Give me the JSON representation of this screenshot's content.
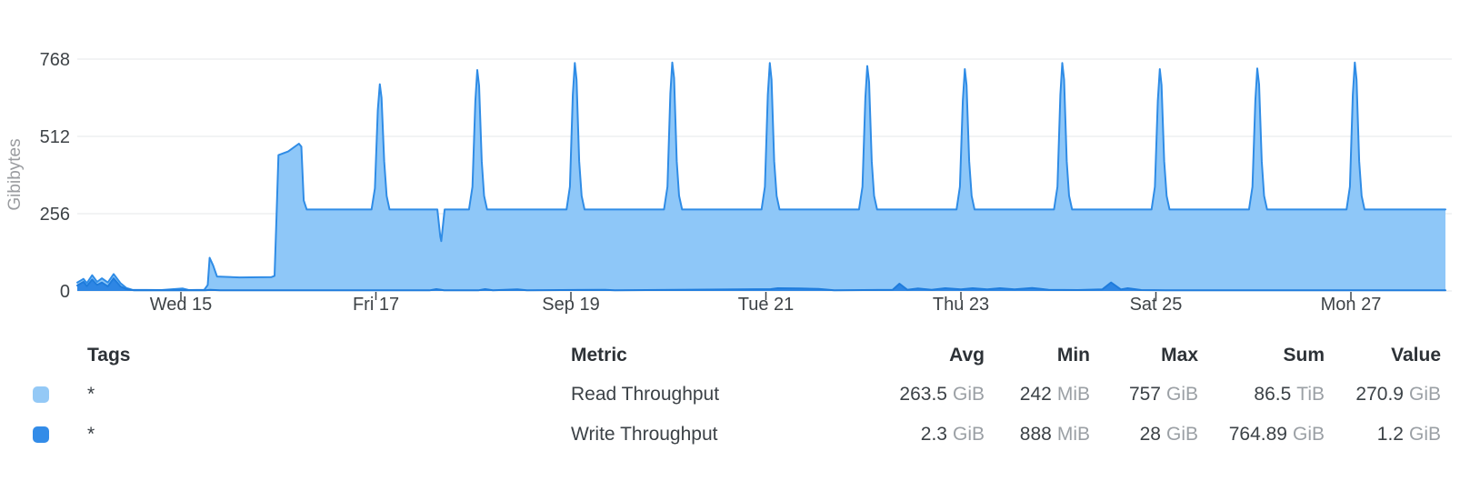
{
  "chart": {
    "ylabel": "Gibibytes",
    "y_ticks": [
      0,
      256,
      512,
      768
    ],
    "x_ticks": [
      {
        "label": "Wed 15",
        "day": 1
      },
      {
        "label": "Fri 17",
        "day": 3
      },
      {
        "label": "Sep 19",
        "day": 5
      },
      {
        "label": "Tue 21",
        "day": 7
      },
      {
        "label": "Thu 23",
        "day": 9
      },
      {
        "label": "Sat 25",
        "day": 11
      },
      {
        "label": "Mon 27",
        "day": 13
      }
    ],
    "grid_color": "#e5e7e9",
    "tick_color": "#3f454b"
  },
  "chart_data": {
    "type": "area",
    "title": "",
    "xlabel": "",
    "ylabel": "Gibibytes",
    "x_unit": "days since Sep 14 00:00",
    "y_unit": "GiB",
    "ylim": [
      0,
      768
    ],
    "grid": true,
    "series": [
      {
        "name": "Read Throughput",
        "fill": "#8ec7f8",
        "stroke": "#2f8ce6",
        "points": [
          [
            -0.063,
            28
          ],
          [
            0,
            40
          ],
          [
            0.035,
            26
          ],
          [
            0.09,
            52
          ],
          [
            0.14,
            30
          ],
          [
            0.19,
            42
          ],
          [
            0.25,
            28
          ],
          [
            0.31,
            56
          ],
          [
            0.38,
            26
          ],
          [
            0.44,
            10
          ],
          [
            0.5,
            4
          ],
          [
            0.8,
            3
          ],
          [
            1.02,
            8
          ],
          [
            1.08,
            3
          ],
          [
            1.24,
            4
          ],
          [
            1.275,
            20
          ],
          [
            1.295,
            110
          ],
          [
            1.33,
            85
          ],
          [
            1.37,
            48
          ],
          [
            1.6,
            45
          ],
          [
            1.93,
            46
          ],
          [
            1.96,
            50
          ],
          [
            1.98,
            240
          ],
          [
            2.0,
            450
          ],
          [
            2.1,
            462
          ],
          [
            2.21,
            488
          ],
          [
            2.235,
            478
          ],
          [
            2.26,
            300
          ],
          [
            2.29,
            270
          ],
          [
            2.955,
            270
          ],
          [
            2.99,
            340
          ],
          [
            3.02,
            600
          ],
          [
            3.04,
            685
          ],
          [
            3.058,
            640
          ],
          [
            3.085,
            430
          ],
          [
            3.11,
            315
          ],
          [
            3.14,
            270
          ],
          [
            3.63,
            270
          ],
          [
            3.66,
            180
          ],
          [
            3.67,
            165
          ],
          [
            3.705,
            270
          ],
          [
            3.955,
            270
          ],
          [
            3.99,
            345
          ],
          [
            4.02,
            630
          ],
          [
            4.04,
            732
          ],
          [
            4.058,
            680
          ],
          [
            4.085,
            430
          ],
          [
            4.11,
            315
          ],
          [
            4.14,
            270
          ],
          [
            4.955,
            270
          ],
          [
            4.99,
            345
          ],
          [
            5.02,
            650
          ],
          [
            5.04,
            755
          ],
          [
            5.058,
            700
          ],
          [
            5.085,
            430
          ],
          [
            5.11,
            315
          ],
          [
            5.14,
            270
          ],
          [
            5.955,
            270
          ],
          [
            5.99,
            345
          ],
          [
            6.02,
            655
          ],
          [
            6.04,
            757
          ],
          [
            6.058,
            705
          ],
          [
            6.085,
            430
          ],
          [
            6.11,
            315
          ],
          [
            6.14,
            270
          ],
          [
            6.955,
            270
          ],
          [
            6.99,
            345
          ],
          [
            7.02,
            650
          ],
          [
            7.04,
            755
          ],
          [
            7.058,
            700
          ],
          [
            7.085,
            430
          ],
          [
            7.11,
            315
          ],
          [
            7.14,
            270
          ],
          [
            7.955,
            270
          ],
          [
            7.99,
            345
          ],
          [
            8.02,
            640
          ],
          [
            8.04,
            745
          ],
          [
            8.058,
            692
          ],
          [
            8.085,
            430
          ],
          [
            8.11,
            315
          ],
          [
            8.14,
            270
          ],
          [
            8.955,
            270
          ],
          [
            8.99,
            345
          ],
          [
            9.02,
            630
          ],
          [
            9.04,
            735
          ],
          [
            9.058,
            682
          ],
          [
            9.085,
            430
          ],
          [
            9.11,
            315
          ],
          [
            9.14,
            270
          ],
          [
            9.955,
            270
          ],
          [
            9.99,
            345
          ],
          [
            10.02,
            650
          ],
          [
            10.04,
            755
          ],
          [
            10.058,
            700
          ],
          [
            10.085,
            430
          ],
          [
            10.11,
            315
          ],
          [
            10.14,
            270
          ],
          [
            10.955,
            270
          ],
          [
            10.99,
            345
          ],
          [
            11.02,
            630
          ],
          [
            11.04,
            735
          ],
          [
            11.058,
            682
          ],
          [
            11.085,
            430
          ],
          [
            11.11,
            315
          ],
          [
            11.14,
            270
          ],
          [
            11.955,
            270
          ],
          [
            11.99,
            345
          ],
          [
            12.02,
            632
          ],
          [
            12.04,
            737
          ],
          [
            12.058,
            684
          ],
          [
            12.085,
            430
          ],
          [
            12.11,
            315
          ],
          [
            12.14,
            270
          ],
          [
            12.955,
            270
          ],
          [
            12.99,
            345
          ],
          [
            13.02,
            650
          ],
          [
            13.04,
            757
          ],
          [
            13.058,
            700
          ],
          [
            13.085,
            430
          ],
          [
            13.11,
            315
          ],
          [
            13.14,
            270
          ],
          [
            13.97,
            270
          ]
        ]
      },
      {
        "name": "Write Throughput",
        "fill": "#2e86e4",
        "stroke": "#1f7cdc",
        "points": [
          [
            -0.063,
            18
          ],
          [
            0,
            30
          ],
          [
            0.035,
            16
          ],
          [
            0.09,
            38
          ],
          [
            0.14,
            20
          ],
          [
            0.19,
            28
          ],
          [
            0.25,
            15
          ],
          [
            0.31,
            42
          ],
          [
            0.38,
            15
          ],
          [
            0.44,
            6
          ],
          [
            0.52,
            2
          ],
          [
            1.25,
            2
          ],
          [
            1.3,
            4
          ],
          [
            1.4,
            2
          ],
          [
            3.55,
            2
          ],
          [
            3.62,
            6
          ],
          [
            3.7,
            2
          ],
          [
            4.05,
            2
          ],
          [
            4.12,
            6
          ],
          [
            4.2,
            2
          ],
          [
            4.45,
            5
          ],
          [
            4.55,
            2
          ],
          [
            5.35,
            4
          ],
          [
            5.45,
            2
          ],
          [
            7.05,
            6
          ],
          [
            7.12,
            9
          ],
          [
            7.35,
            8
          ],
          [
            7.54,
            7
          ],
          [
            7.7,
            2
          ],
          [
            8.3,
            4
          ],
          [
            8.37,
            24
          ],
          [
            8.45,
            4
          ],
          [
            8.56,
            8
          ],
          [
            8.7,
            4
          ],
          [
            8.84,
            9
          ],
          [
            9.0,
            5
          ],
          [
            9.12,
            9
          ],
          [
            9.27,
            5
          ],
          [
            9.4,
            9
          ],
          [
            9.55,
            5
          ],
          [
            9.73,
            10
          ],
          [
            9.9,
            4
          ],
          [
            10.2,
            3
          ],
          [
            10.45,
            5
          ],
          [
            10.54,
            28
          ],
          [
            10.64,
            5
          ],
          [
            10.71,
            9
          ],
          [
            10.85,
            3
          ],
          [
            11.1,
            2
          ],
          [
            13.2,
            2
          ],
          [
            13.97,
            2
          ]
        ]
      }
    ]
  },
  "legend": {
    "headers": [
      "Tags",
      "Metric",
      "Avg",
      "Min",
      "Max",
      "Sum",
      "Value"
    ],
    "rows": [
      {
        "swatch": "#94c9f6",
        "tag": "*",
        "metric": "Read Throughput",
        "avg": {
          "num": "263.5",
          "unit": "GiB"
        },
        "min": {
          "num": "242",
          "unit": "MiB"
        },
        "max": {
          "num": "757",
          "unit": "GiB"
        },
        "sum": {
          "num": "86.5",
          "unit": "TiB"
        },
        "value": {
          "num": "270.9",
          "unit": "GiB"
        }
      },
      {
        "swatch": "#338ce8",
        "tag": "*",
        "metric": "Write Throughput",
        "avg": {
          "num": "2.3",
          "unit": "GiB"
        },
        "min": {
          "num": "888",
          "unit": "MiB"
        },
        "max": {
          "num": "28",
          "unit": "GiB"
        },
        "sum": {
          "num": "764.89",
          "unit": "GiB"
        },
        "value": {
          "num": "1.2",
          "unit": "GiB"
        }
      }
    ]
  }
}
